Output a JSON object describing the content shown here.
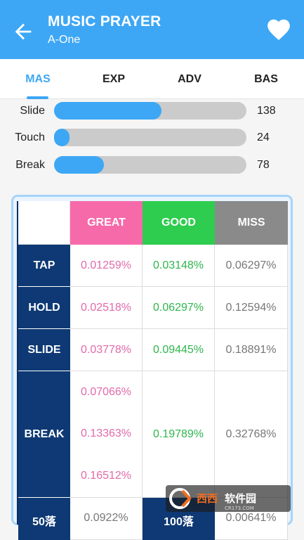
{
  "appbar": {
    "title": "MUSIC PRAYER",
    "subtitle": "A-One"
  },
  "tabs": [
    {
      "label": "MAS",
      "active": true
    },
    {
      "label": "EXP",
      "active": false
    },
    {
      "label": "ADV",
      "active": false
    },
    {
      "label": "BAS",
      "active": false
    }
  ],
  "notes": [
    {
      "label": "Slide",
      "value": "138",
      "fraction": 0.56
    },
    {
      "label": "Touch",
      "value": "24",
      "fraction": 0.08
    },
    {
      "label": "Break",
      "value": "78",
      "fraction": 0.26
    }
  ],
  "table": {
    "headers": {
      "great": "GREAT",
      "good": "GOOD",
      "miss": "MISS"
    },
    "rows": [
      {
        "label": "TAP",
        "great": "0.01259%",
        "good": "0.03148%",
        "miss": "0.06297%"
      },
      {
        "label": "HOLD",
        "great": "0.02518%",
        "good": "0.06297%",
        "miss": "0.12594%"
      },
      {
        "label": "SLIDE",
        "great": "0.03778%",
        "good": "0.09445%",
        "miss": "0.18891%"
      }
    ],
    "break": {
      "label": "BREAK",
      "great": [
        "0.07066%",
        "0.13363%",
        "0.16512%"
      ],
      "good": "0.19789%",
      "miss": "0.32768%"
    },
    "partial_row": {
      "label": "50落",
      "great": "0.0922%",
      "good": "100落",
      "miss": "0.00641%"
    }
  },
  "colors": {
    "appbar": "#3da7f5",
    "great_header": "#f66aaa",
    "good_header": "#2ecc4f",
    "miss_header": "#8a8a8a",
    "row_header": "#0e3974"
  },
  "watermark": {
    "text": "西西软件园",
    "site": "CR173.COM"
  }
}
